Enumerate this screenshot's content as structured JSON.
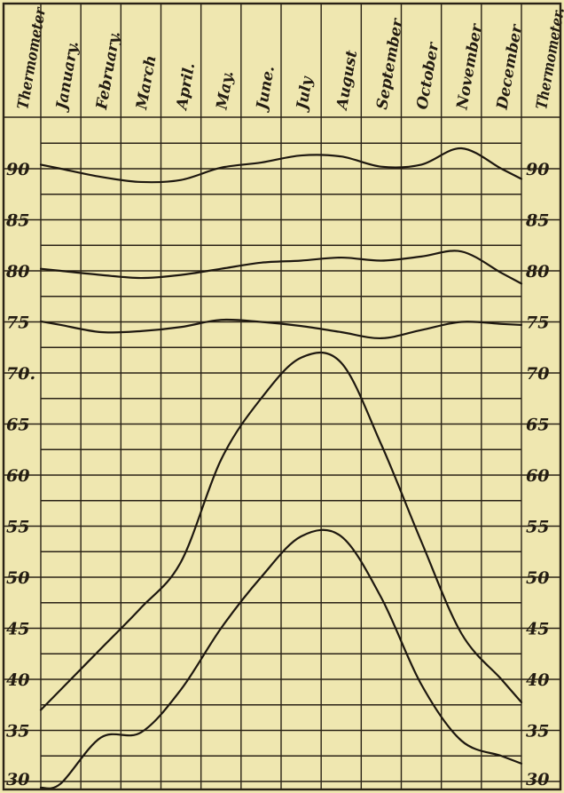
{
  "chart_data": {
    "type": "line",
    "header_left": "Thermometer",
    "header_right": "Thermometer.",
    "categories": [
      "January.",
      "February.",
      "March",
      "April.",
      "May.",
      "June.",
      "July",
      "August",
      "September",
      "October",
      "November",
      "December"
    ],
    "ylim": [
      30,
      93
    ],
    "yticks_left": [
      "90",
      "85",
      "80",
      "75",
      "70.",
      "65",
      "60",
      "55",
      "50",
      "45",
      "40",
      "35",
      "30"
    ],
    "yticks_right": [
      "90",
      "85",
      "80",
      "75",
      "70",
      "65",
      "60",
      "55",
      "50",
      "45",
      "40",
      "35",
      "30"
    ],
    "ytick_values": [
      90,
      85,
      80,
      75,
      70,
      65,
      60,
      55,
      50,
      45,
      40,
      35,
      30
    ],
    "grid": true,
    "series": [
      {
        "values": [
          90,
          89.2,
          88.7,
          88.9,
          90.1,
          90.6,
          91.3,
          91.2,
          90.2,
          90.4,
          92,
          90
        ]
      },
      {
        "values": [
          80,
          79.6,
          79.3,
          79.6,
          80.2,
          80.8,
          81.0,
          81.3,
          81.0,
          81.4,
          81.9,
          79.8
        ]
      },
      {
        "values": [
          74.7,
          74.0,
          74.1,
          74.5,
          75.2,
          75.0,
          74.6,
          74.0,
          73.4,
          74.2,
          75.0,
          74.8
        ]
      },
      {
        "values": [
          39,
          43,
          47,
          51.5,
          61.5,
          67.5,
          71.5,
          71,
          63,
          53.5,
          44.5,
          40
        ]
      },
      {
        "values": [
          29.8,
          34.3,
          34.8,
          39,
          45,
          50,
          54,
          54,
          48,
          39.5,
          34,
          32.5
        ]
      }
    ]
  }
}
